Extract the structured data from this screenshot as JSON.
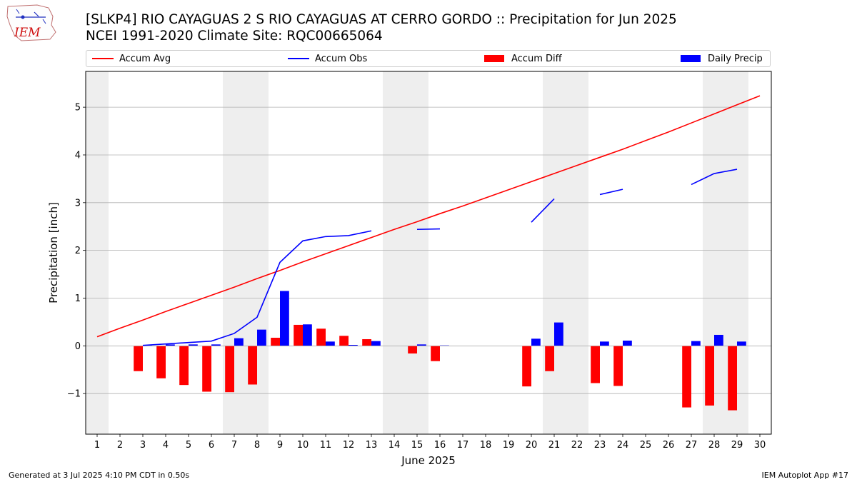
{
  "header": {
    "logo_text": "IEM",
    "title_line1": "[SLKP4] RIO CAYAGUAS 2 S RIO CAYAGUAS AT CERRO GORDO :: Precipitation for Jun 2025",
    "title_line2": "NCEI 1991-2020 Climate Site: RQC00665064"
  },
  "footer": {
    "left": "Generated at 3 Jul 2025 4:10 PM CDT in 0.50s",
    "right": "IEM Autoplot App #17"
  },
  "colors": {
    "avg": "#ff0000",
    "obs": "#0000ff",
    "diff": "#ff0000",
    "daily": "#0000ff",
    "weekend_shade": "#eeeeee",
    "grid": "#b0b0b0"
  },
  "chart_data": {
    "type": "bar",
    "xlabel": "June 2025",
    "ylabel": "Precipitation [inch]",
    "xlim": [
      0.5,
      30.5
    ],
    "ylim": [
      -1.85,
      5.75
    ],
    "yticks": [
      -1,
      0,
      1,
      2,
      3,
      4,
      5
    ],
    "ytick_labels": [
      "−1",
      "0",
      "1",
      "2",
      "3",
      "4",
      "5"
    ],
    "grid": "horizontal",
    "legend": "top, single row",
    "x": [
      1,
      2,
      3,
      4,
      5,
      6,
      7,
      8,
      9,
      10,
      11,
      12,
      13,
      14,
      15,
      16,
      17,
      18,
      19,
      20,
      21,
      22,
      23,
      24,
      25,
      26,
      27,
      28,
      29,
      30
    ],
    "weekend_days": [
      1,
      7,
      8,
      14,
      15,
      21,
      22,
      28,
      29
    ],
    "series": [
      {
        "name": "Accum Avg",
        "kind": "line",
        "color": "#ff0000",
        "values": [
          0.19,
          0.37,
          0.54,
          0.72,
          0.89,
          1.06,
          1.23,
          1.41,
          1.58,
          1.76,
          1.93,
          2.1,
          2.27,
          2.44,
          2.6,
          2.77,
          2.93,
          3.1,
          3.27,
          3.44,
          3.61,
          3.78,
          3.95,
          4.12,
          4.3,
          4.48,
          4.67,
          4.86,
          5.05,
          5.24
        ]
      },
      {
        "name": "Accum Obs",
        "kind": "line",
        "color": "#0000ff",
        "values": [
          null,
          null,
          0.01,
          0.04,
          0.07,
          0.1,
          0.26,
          0.6,
          1.75,
          2.2,
          2.29,
          2.31,
          2.41,
          null,
          2.44,
          2.45,
          null,
          null,
          null,
          2.59,
          3.08,
          null,
          3.17,
          3.28,
          null,
          null,
          3.38,
          3.61,
          3.7,
          null
        ]
      },
      {
        "name": "Accum Diff",
        "kind": "bar",
        "color": "#ff0000",
        "values": [
          null,
          null,
          -0.53,
          -0.68,
          -0.82,
          -0.96,
          -0.97,
          -0.81,
          0.17,
          0.44,
          0.36,
          0.21,
          0.14,
          null,
          -0.16,
          -0.32,
          null,
          null,
          null,
          -0.85,
          -0.53,
          null,
          -0.78,
          -0.84,
          null,
          null,
          -1.29,
          -1.25,
          -1.35,
          null
        ]
      },
      {
        "name": "Daily Precip",
        "kind": "bar",
        "color": "#0000ff",
        "values": [
          null,
          null,
          0.01,
          0.03,
          0.03,
          0.03,
          0.16,
          0.34,
          1.15,
          0.45,
          0.09,
          0.02,
          0.1,
          null,
          0.03,
          0.01,
          null,
          null,
          null,
          0.15,
          0.49,
          null,
          0.09,
          0.11,
          null,
          null,
          0.1,
          0.23,
          0.09,
          null
        ]
      }
    ]
  }
}
